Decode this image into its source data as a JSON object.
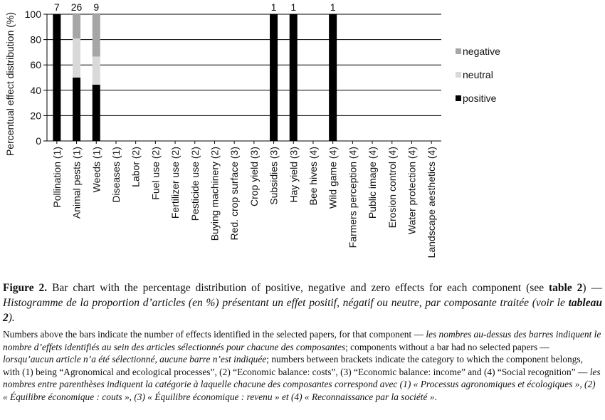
{
  "chart_data": {
    "type": "bar",
    "stacked": true,
    "ylabel": "Percentual effect distribution (%)",
    "ylim": [
      0,
      100
    ],
    "yticks": [
      0,
      20,
      40,
      60,
      80,
      100
    ],
    "grid": true,
    "legend_position": "right",
    "categories": [
      "Pollination (1)",
      "Animal pests (1)",
      "Weeds (1)",
      "Diseases (1)",
      "Labor (2)",
      "Fuel use (2)",
      "Fertilizer use (2)",
      "Pesticide use (2)",
      "Buying machinery (2)",
      "Red. crop surface (3)",
      "Crop yield (3)",
      "Subsidies (3)",
      "Hay yield (3)",
      "Bee hives (4)",
      "Wild game (4)",
      "Farmers perception (4)",
      "Public image (4)",
      "Erosion control (4)",
      "Water protection (4)",
      "Landscape aesthetics (4)"
    ],
    "counts": [
      "7",
      "26",
      "9",
      "",
      "",
      "",
      "",
      "",
      "",
      "",
      "",
      "1",
      "1",
      "",
      "1",
      "",
      "",
      "",
      "",
      ""
    ],
    "series": [
      {
        "name": "positive",
        "color": "#000000",
        "values": [
          100,
          50,
          44.4,
          0,
          0,
          0,
          0,
          0,
          0,
          0,
          0,
          100,
          100,
          0,
          100,
          0,
          0,
          0,
          0,
          0
        ]
      },
      {
        "name": "neutral",
        "color": "#d9d9d9",
        "values": [
          0,
          30.8,
          22.2,
          0,
          0,
          0,
          0,
          0,
          0,
          0,
          0,
          0,
          0,
          0,
          0,
          0,
          0,
          0,
          0,
          0
        ]
      },
      {
        "name": "negative",
        "color": "#a6a6a6",
        "values": [
          0,
          19.2,
          33.4,
          0,
          0,
          0,
          0,
          0,
          0,
          0,
          0,
          0,
          0,
          0,
          0,
          0,
          0,
          0,
          0,
          0
        ]
      }
    ],
    "legend_order": [
      "negative",
      "neutral",
      "positive"
    ]
  },
  "caption": {
    "fig_label": "Figure 2.",
    "en_text": " Bar chart with the percentage distribution of positive, negative and zero effects for each component (see ",
    "table_ref": "table 2",
    "mid": ") — ",
    "fr_text": "Histogramme de la proportion d’articles (en %) présentant un effet positif, négatif ou neutre, par composante traitée (voir le ",
    "fr_table_ref": "tableau 2",
    "end": ")."
  },
  "notes": {
    "p1": "Numbers above the bars indicate the number of effects identified in the selected papers, for that component — ",
    "p1_fr": "les nombres au-dessus des barres indiquent le nombre d’effets identifiés au sein des articles sélectionnés pour chacune des composantes",
    "p2": "; components without a bar had no selected papers — ",
    "p2_fr": "lorsqu’aucun article n’a été sélectionné, aucune barre n’est indiquée",
    "p3": "; numbers between brackets indicate the category to which the component belongs, with (1) being “Agronomical and ecological processes”, (2) “Economic balance: costs”, (3) “Economic balance: income” and (4) “Social recognition” — ",
    "p3_fr": "les nombres entre parenthèses indiquent la catégorie à laquelle chacune des composantes correspond avec (1) « Processus agronomiques et écologiques », (2) « Équilibre économique : couts », (3) « Équilibre économique : revenu » et (4) « Reconnaissance par la société »",
    "end": "."
  }
}
